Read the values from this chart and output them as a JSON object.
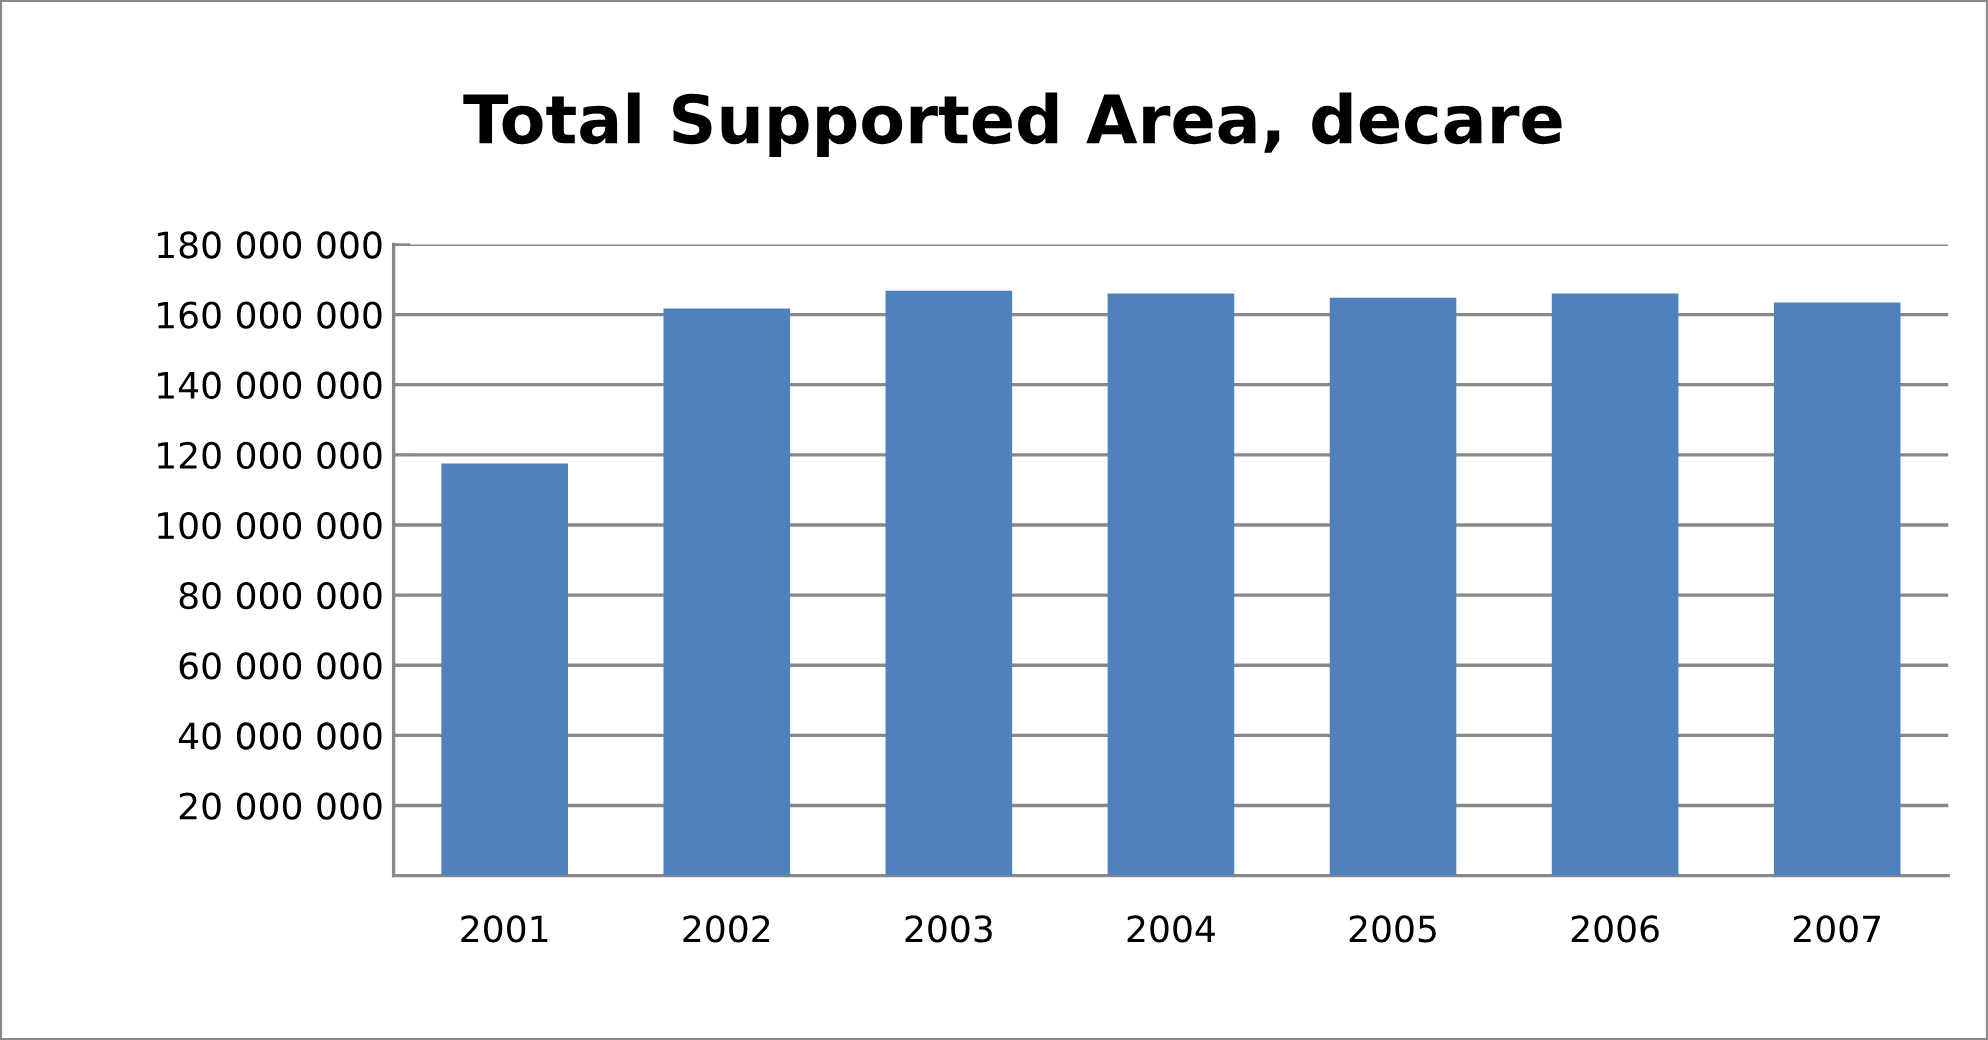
{
  "chart_data": {
    "type": "bar",
    "title": "Total Supported Area, decare",
    "categories": [
      "2001",
      "2002",
      "2003",
      "2004",
      "2005",
      "2006",
      "2007"
    ],
    "values": [
      117500000,
      161700000,
      166800000,
      166000000,
      164800000,
      166000000,
      163400000
    ],
    "color": "#4f81bd",
    "ylim": [
      0,
      180000000
    ],
    "yticks": [
      {
        "value": 0,
        "label": null
      },
      {
        "value": 20000000,
        "label": "20 000 000"
      },
      {
        "value": 40000000,
        "label": "40 000 000"
      },
      {
        "value": 60000000,
        "label": "60 000 000"
      },
      {
        "value": 80000000,
        "label": "80 000 000"
      },
      {
        "value": 100000000,
        "label": "100 000 000"
      },
      {
        "value": 120000000,
        "label": "120 000 000"
      },
      {
        "value": 140000000,
        "label": "140 000 000"
      },
      {
        "value": 160000000,
        "label": "160 000 000"
      },
      {
        "value": 180000000,
        "label": "180 000 000"
      }
    ],
    "grid": "y",
    "legend": false
  }
}
